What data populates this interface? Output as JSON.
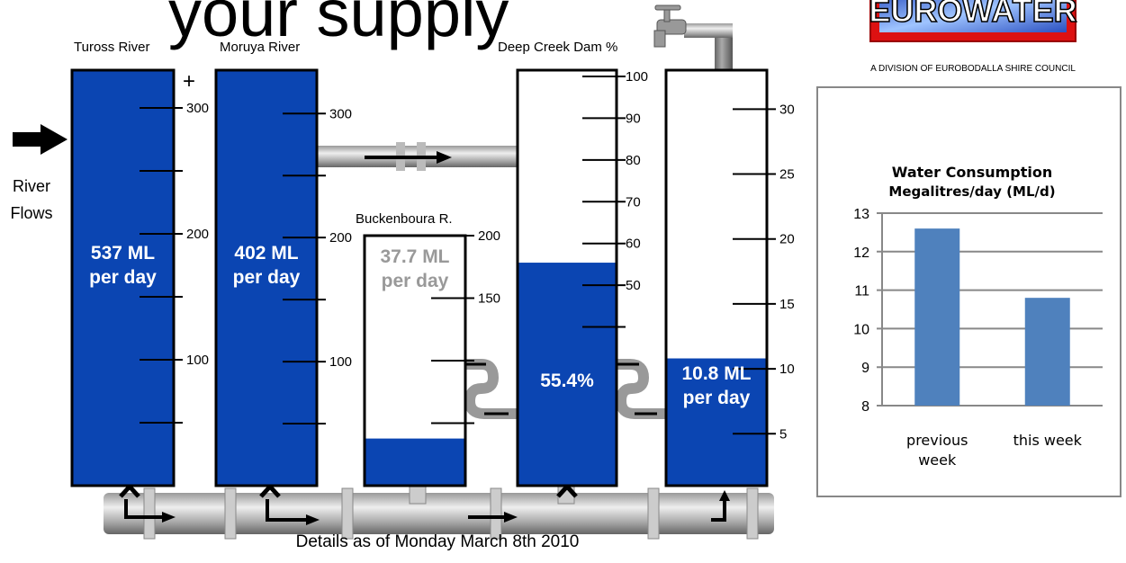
{
  "title": "your supply",
  "logo": {
    "text": "EUROWATER",
    "caption": "A DIVISION OF EUROBODALLA SHIRE COUNCIL"
  },
  "river_flows": "River Flows",
  "gauges": [
    {
      "name": "Tuross River",
      "value": 537,
      "value_label": "537 ML per day",
      "ylim": [
        0,
        330
      ],
      "ticks": [
        300,
        200,
        100
      ],
      "minor_ticks": [
        250,
        150,
        50
      ],
      "overflow_mark": "+"
    },
    {
      "name": "Moruya River",
      "value": 402,
      "value_label": "402 ML per day",
      "ylim": [
        0,
        335
      ],
      "ticks": [
        300,
        200,
        100
      ],
      "minor_ticks": [
        250,
        150,
        50
      ]
    },
    {
      "name": "Buckenboura R.",
      "value": 37.7,
      "value_label": "37.7 ML per day",
      "ylim": [
        0,
        200
      ],
      "ticks": [
        200,
        150
      ],
      "minor_ticks": [
        100,
        50
      ]
    },
    {
      "name": "Deep Creek Dam %",
      "value": 55.4,
      "value_label": "55.4%",
      "ylim": [
        2,
        101.5
      ],
      "ticks": [
        100,
        90,
        80,
        70,
        60,
        50
      ],
      "minor_ticks": [
        40
      ]
    },
    {
      "name": "",
      "value": 10.8,
      "value_label": "10.8 ML per day",
      "ylim": [
        1,
        33
      ],
      "ticks": [
        30,
        25,
        20,
        15,
        10,
        5
      ],
      "minor_ticks": []
    }
  ],
  "footer": "Details as of Monday March 8th 2010",
  "chart_data": {
    "type": "bar",
    "title": "Water Consumption",
    "subtitle": "Megalitres/day (ML/d)",
    "categories": [
      "previous week",
      "this week"
    ],
    "values": [
      12.6,
      10.8
    ],
    "color": "#4f81bd",
    "ylim": [
      8,
      13
    ],
    "yticks": [
      8,
      9,
      10,
      11,
      12,
      13
    ],
    "grid": true
  }
}
